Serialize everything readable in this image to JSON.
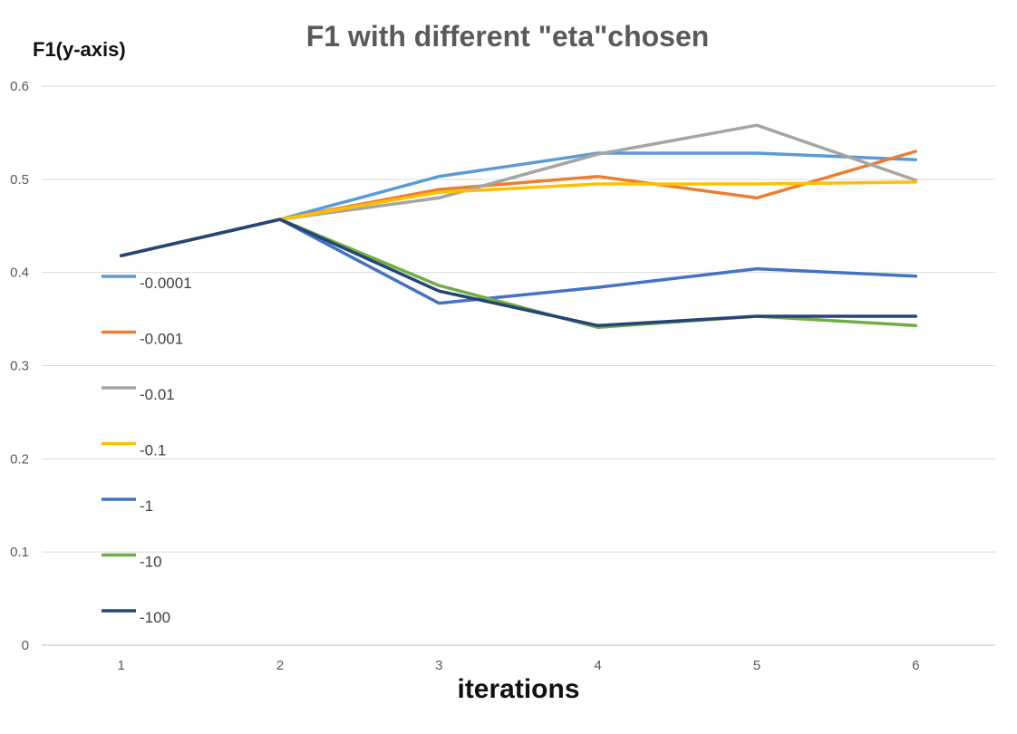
{
  "chart_data": {
    "type": "line",
    "title": "F1 with different \"eta\"chosen",
    "ylabel": "F1(y-axis)",
    "xlabel": "iterations",
    "categories": [
      "1",
      "2",
      "3",
      "4",
      "5",
      "6"
    ],
    "ylim": [
      0,
      0.6
    ],
    "yticks": [
      0,
      0.1,
      0.2,
      0.3,
      0.4,
      0.5,
      0.6
    ],
    "ytick_labels": [
      "0",
      "0.1",
      "0.2",
      "0.3",
      "0.4",
      "0.5",
      "0.6"
    ],
    "grid": true,
    "legend_position": "left",
    "series": [
      {
        "name": "-0.0001",
        "color": "#5b9bd5",
        "values": [
          0.418,
          0.457,
          0.503,
          0.528,
          0.528,
          0.521
        ]
      },
      {
        "name": "-0.001",
        "color": "#ed7d31",
        "values": [
          0.418,
          0.457,
          0.489,
          0.503,
          0.48,
          0.53
        ]
      },
      {
        "name": "-0.01",
        "color": "#a5a5a5",
        "values": [
          0.418,
          0.457,
          0.48,
          0.527,
          0.558,
          0.499
        ]
      },
      {
        "name": "-0.1",
        "color": "#ffc000",
        "values": [
          0.418,
          0.457,
          0.486,
          0.495,
          0.495,
          0.497
        ]
      },
      {
        "name": "-1",
        "color": "#4472c4",
        "values": [
          0.418,
          0.457,
          0.367,
          0.384,
          0.404,
          0.396
        ]
      },
      {
        "name": "-10",
        "color": "#70ad47",
        "values": [
          0.418,
          0.457,
          0.386,
          0.341,
          0.353,
          0.343
        ]
      },
      {
        "name": "-100",
        "color": "#264478",
        "values": [
          0.418,
          0.457,
          0.38,
          0.343,
          0.353,
          0.353
        ]
      }
    ]
  }
}
